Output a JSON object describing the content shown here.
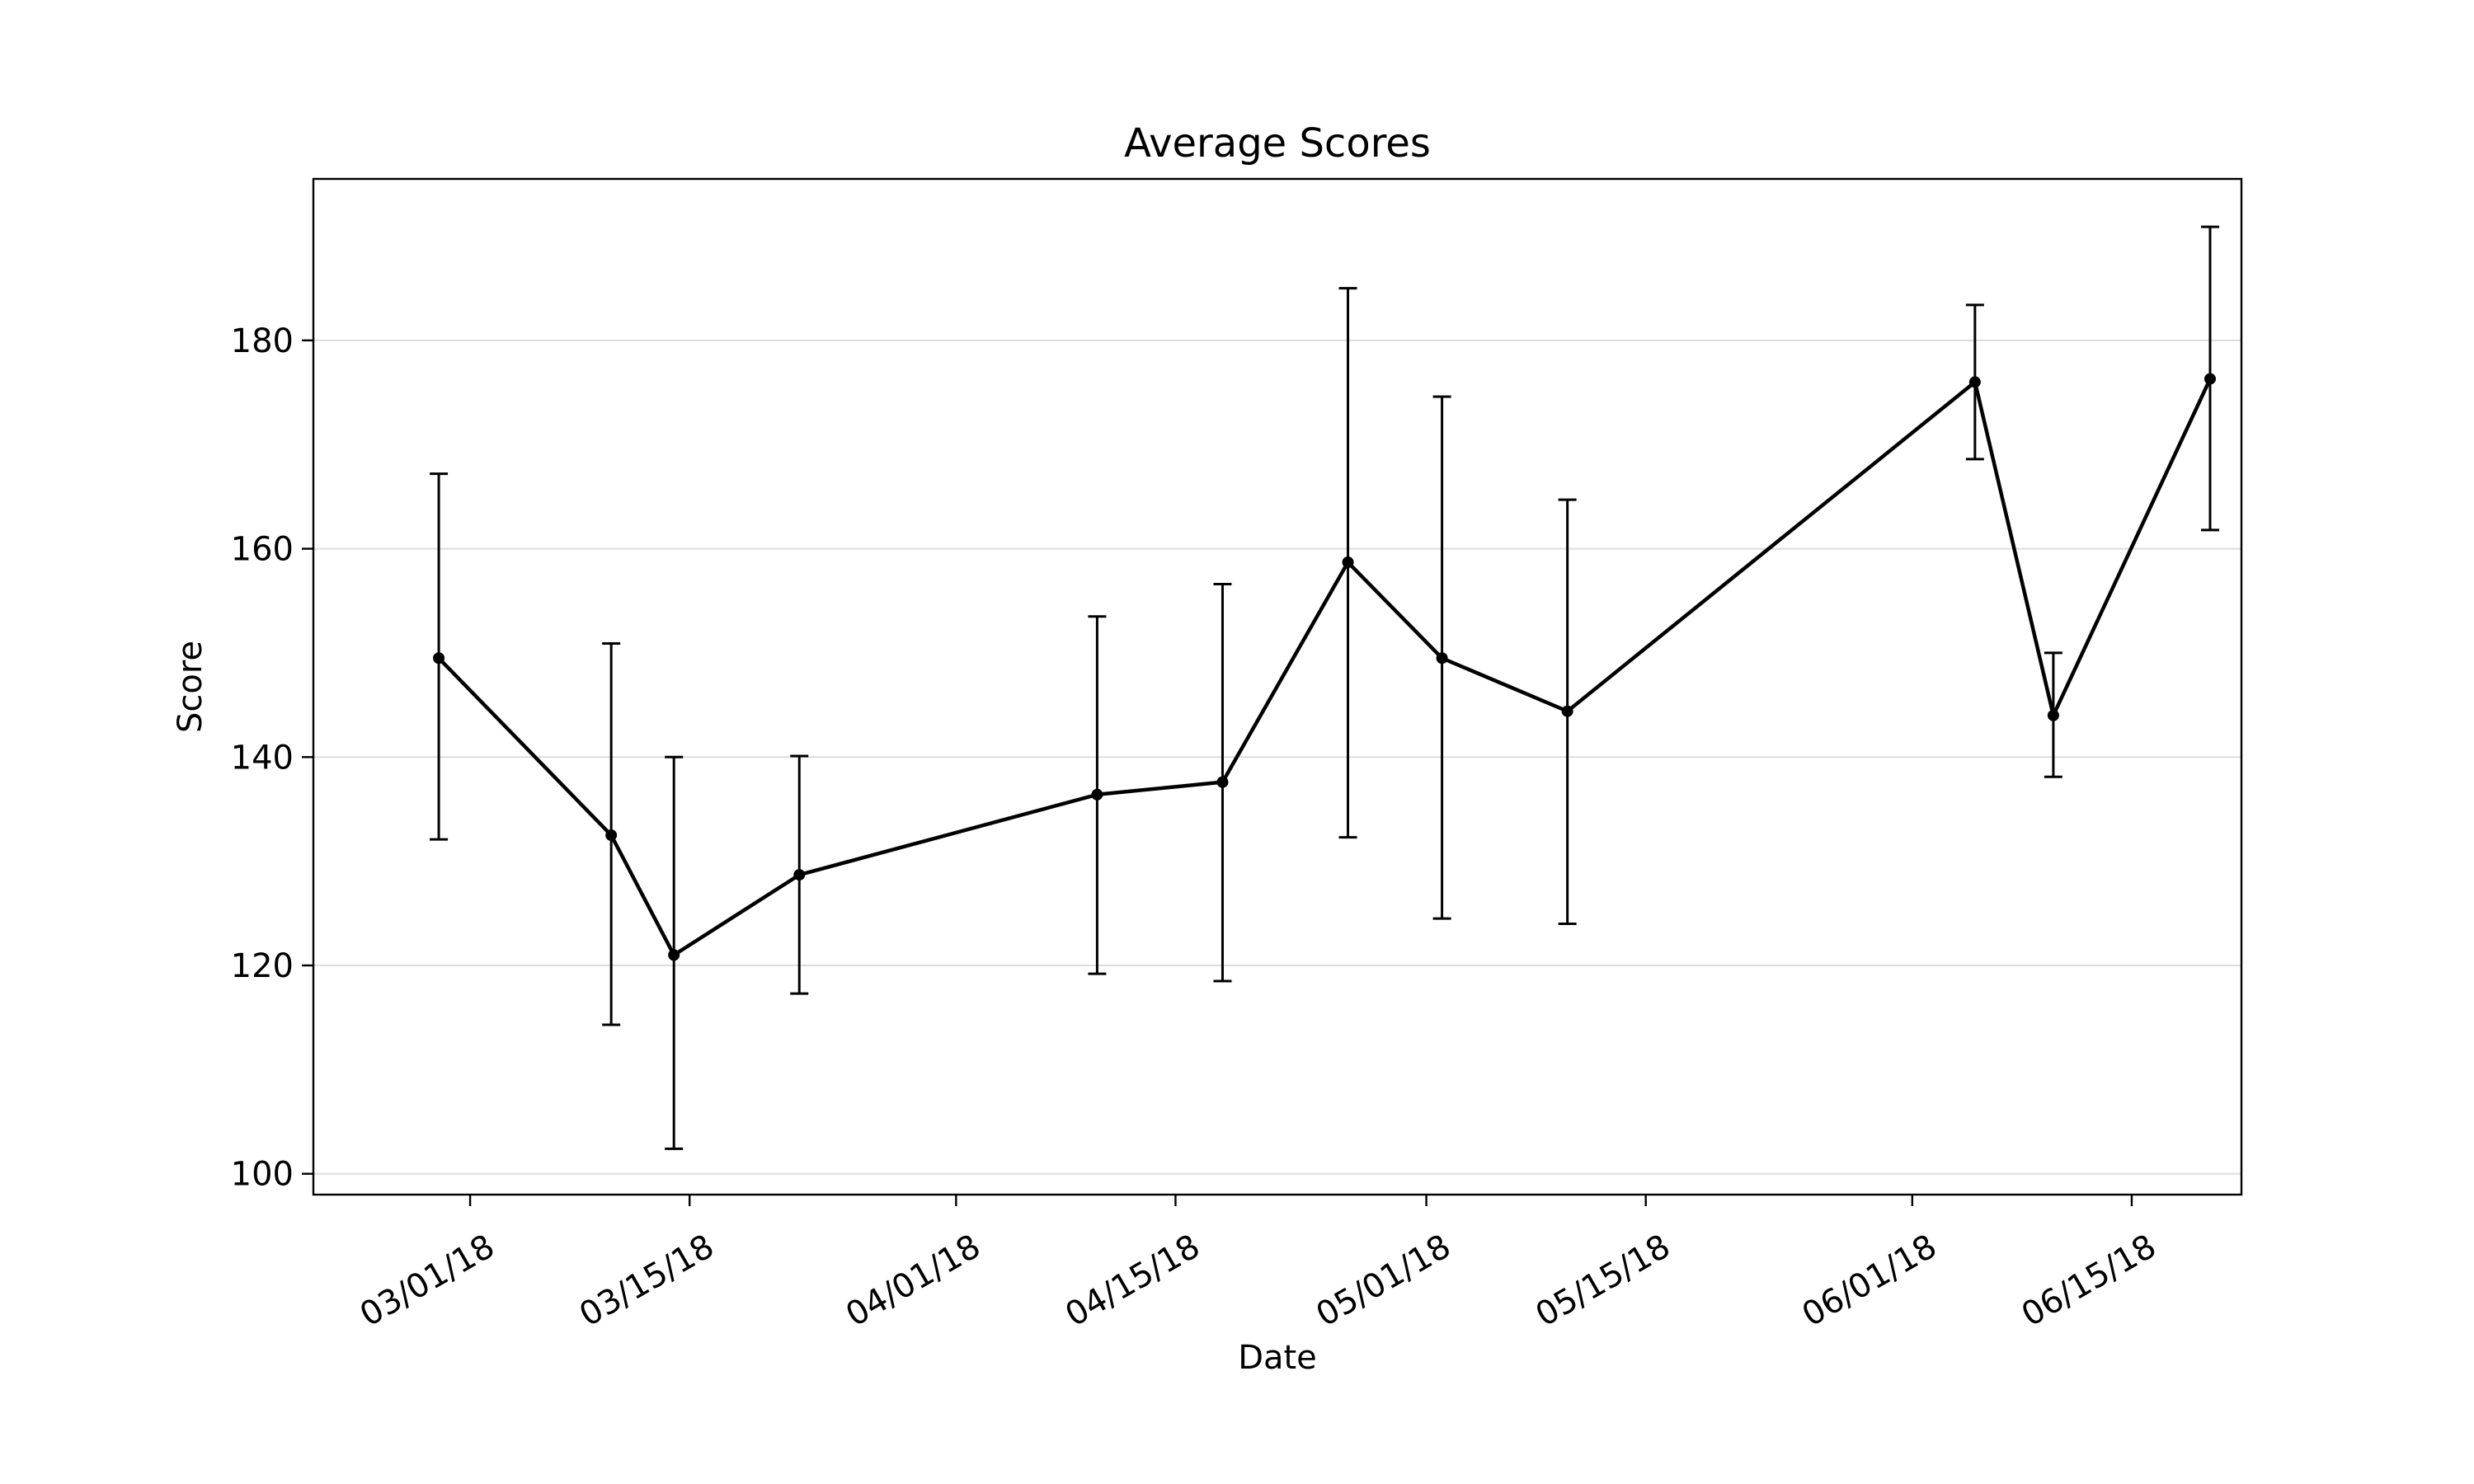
{
  "chart_data": {
    "type": "line",
    "title": "Average Scores",
    "xlabel": "Date",
    "ylabel": "Score",
    "x": [
      "2018-02-27",
      "2018-03-10",
      "2018-03-14",
      "2018-03-22",
      "2018-04-10",
      "2018-04-18",
      "2018-04-26",
      "2018-05-02",
      "2018-05-10",
      "2018-06-05",
      "2018-06-10",
      "2018-06-20"
    ],
    "series": [
      {
        "values": [
          149.5,
          132.5,
          121.0,
          128.7,
          136.4,
          137.6,
          158.7,
          149.5,
          144.4,
          176.0,
          144.0,
          176.3
        ],
        "err_low": [
          132.1,
          114.3,
          102.4,
          117.3,
          119.2,
          118.5,
          132.3,
          124.5,
          124.0,
          168.6,
          138.1,
          161.8
        ],
        "err_high": [
          167.2,
          150.9,
          140.0,
          140.1,
          153.5,
          156.6,
          185.0,
          174.6,
          164.7,
          183.4,
          150.0,
          190.9
        ],
        "color": "#000000"
      }
    ],
    "xticks": [
      "2018-03-01",
      "2018-03-15",
      "2018-04-01",
      "2018-04-15",
      "2018-05-01",
      "2018-05-15",
      "2018-06-01",
      "2018-06-15"
    ],
    "xtick_labels": [
      "03/01/18",
      "03/15/18",
      "04/01/18",
      "04/15/18",
      "05/01/18",
      "05/15/18",
      "06/01/18",
      "06/15/18"
    ],
    "yticks": [
      100,
      120,
      140,
      160,
      180
    ],
    "xlim": [
      "2018-02-19",
      "2018-06-22"
    ],
    "ylim": [
      98,
      195.5
    ],
    "grid": "horizontal",
    "grid_color": "#dddddd",
    "axes_color": "#000000"
  }
}
